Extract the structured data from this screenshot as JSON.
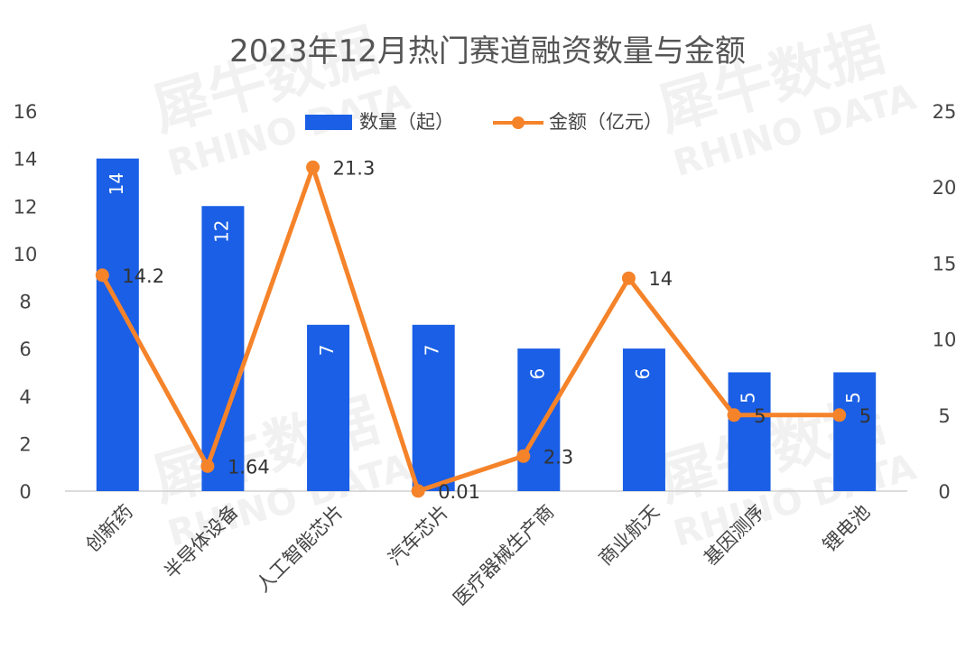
{
  "watermark": {
    "brand_cn": "犀牛数据",
    "brand_en": "RHINO DATA"
  },
  "chart_data": {
    "type": "bar",
    "title": "2023年12月热门赛道融资数量与金额",
    "categories": [
      "创新药",
      "半导体设备",
      "人工智能芯片",
      "汽车芯片",
      "医疗器械生产商",
      "商业航天",
      "基因测序",
      "锂电池"
    ],
    "series": [
      {
        "name": "数量（起）",
        "type": "bar",
        "axis": "left",
        "color": "#1a5fe6",
        "values": [
          14,
          12,
          7,
          7,
          6,
          6,
          5,
          5
        ],
        "labels": [
          "14",
          "12",
          "7",
          "7",
          "6",
          "6",
          "5",
          "5"
        ]
      },
      {
        "name": "金额（亿元）",
        "type": "line",
        "axis": "right",
        "color": "#f5832a",
        "values": [
          14.2,
          1.64,
          21.3,
          0.01,
          2.3,
          14,
          5,
          5
        ],
        "labels": [
          "14.2",
          "1.64",
          "21.3",
          "0.01",
          "2.3",
          "14",
          "5",
          "5"
        ]
      }
    ],
    "y_left": {
      "min": 0,
      "max": 16,
      "ticks": [
        "0",
        "2",
        "4",
        "6",
        "8",
        "10",
        "12",
        "14",
        "16"
      ]
    },
    "y_right": {
      "min": 0,
      "max": 25,
      "ticks": [
        "0",
        "5",
        "10",
        "15",
        "20",
        "25"
      ]
    },
    "legend_position": "top-center",
    "grid": false
  }
}
